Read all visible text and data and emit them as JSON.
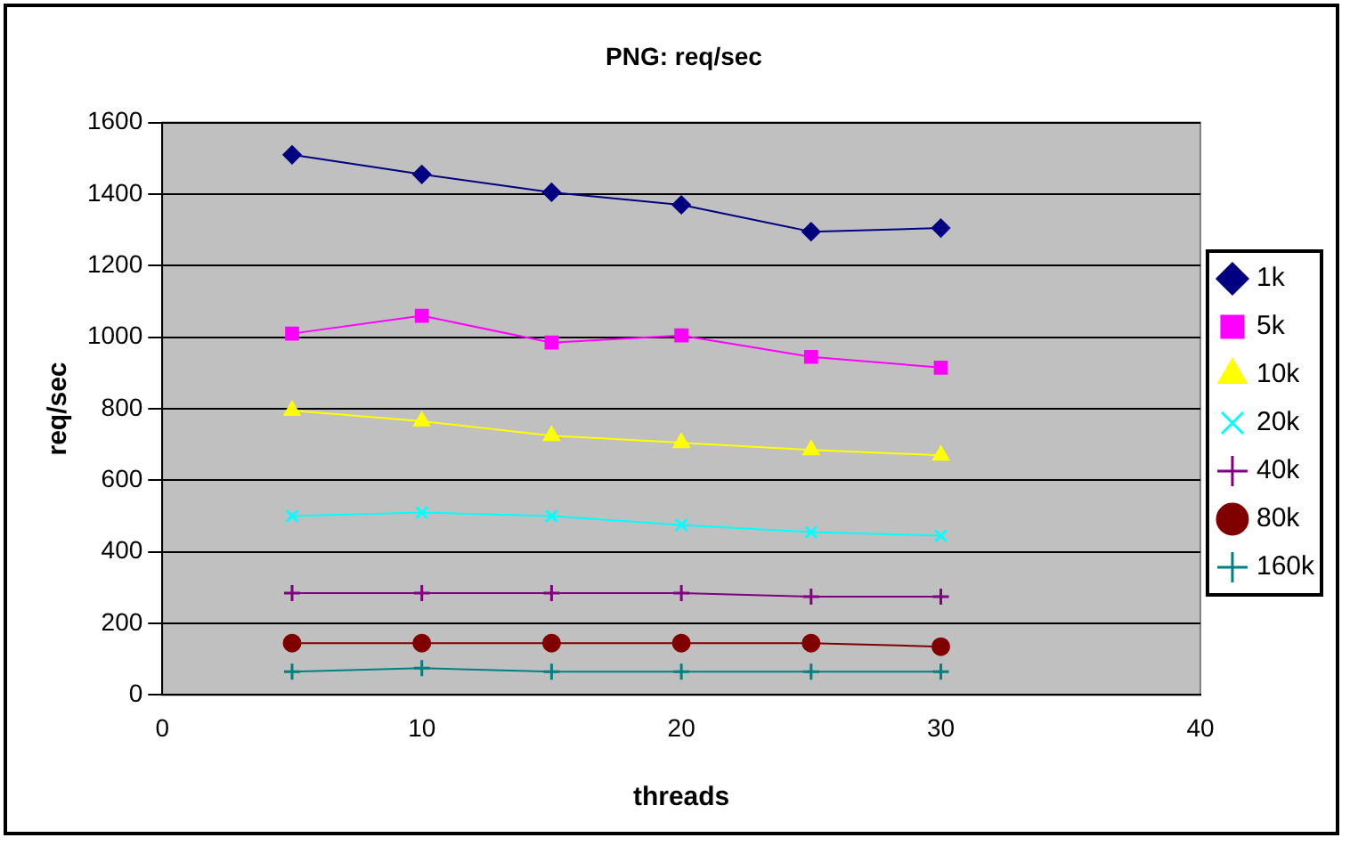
{
  "chart_data": {
    "type": "line",
    "title": "PNG: req/sec",
    "xlabel": "threads",
    "ylabel": "req/sec",
    "x": [
      5,
      10,
      15,
      20,
      25,
      30
    ],
    "series": [
      {
        "name": "1k",
        "color": "#000080",
        "marker": "diamond",
        "values": [
          1510,
          1455,
          1405,
          1370,
          1295,
          1305
        ]
      },
      {
        "name": "5k",
        "color": "#ff00ff",
        "marker": "square",
        "values": [
          1010,
          1060,
          985,
          1005,
          945,
          915
        ]
      },
      {
        "name": "10k",
        "color": "#ffff00",
        "marker": "triangle",
        "values": [
          795,
          765,
          725,
          705,
          685,
          670
        ]
      },
      {
        "name": "20k",
        "color": "#00ffff",
        "marker": "x",
        "values": [
          500,
          510,
          500,
          475,
          455,
          445
        ]
      },
      {
        "name": "40k",
        "color": "#800080",
        "marker": "cross",
        "values": [
          285,
          285,
          285,
          285,
          275,
          275
        ]
      },
      {
        "name": "80k",
        "color": "#800000",
        "marker": "circle",
        "values": [
          145,
          145,
          145,
          145,
          145,
          135
        ]
      },
      {
        "name": "160k",
        "color": "#008080",
        "marker": "cross",
        "values": [
          65,
          75,
          65,
          65,
          65,
          65
        ]
      }
    ],
    "xlim": [
      0,
      40
    ],
    "xticks": [
      0,
      10,
      20,
      30,
      40
    ],
    "ylim": [
      0,
      1600
    ],
    "yticks": [
      0,
      200,
      400,
      600,
      800,
      1000,
      1200,
      1400,
      1600
    ],
    "grid": "y",
    "legend": "right"
  }
}
